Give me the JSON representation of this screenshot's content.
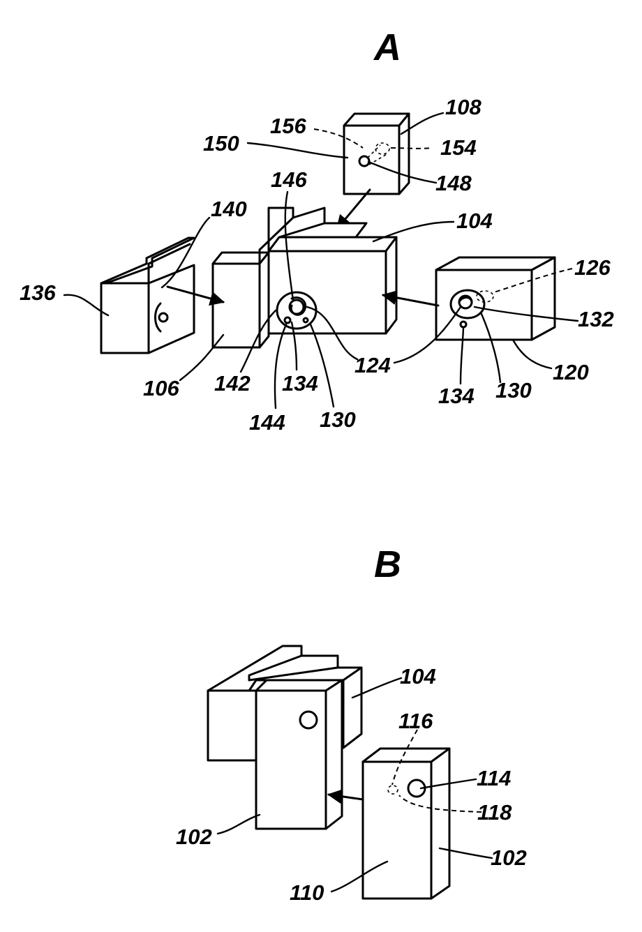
{
  "panels": {
    "a": "A",
    "b": "B"
  },
  "labels": {
    "l108": "108",
    "l156": "156",
    "l150": "150",
    "l154": "154",
    "l148": "148",
    "l146": "146",
    "l140": "140",
    "l104a": "104",
    "l126": "126",
    "l136": "136",
    "l132": "132",
    "l124": "124",
    "l120": "120",
    "l106": "106",
    "l142": "142",
    "l134a": "134",
    "l134b": "134",
    "l130a": "130",
    "l130b": "130",
    "l144": "144",
    "l104b": "104",
    "l116": "116",
    "l114": "114",
    "l118": "118",
    "l102a": "102",
    "l102b": "102",
    "l110": "110"
  }
}
